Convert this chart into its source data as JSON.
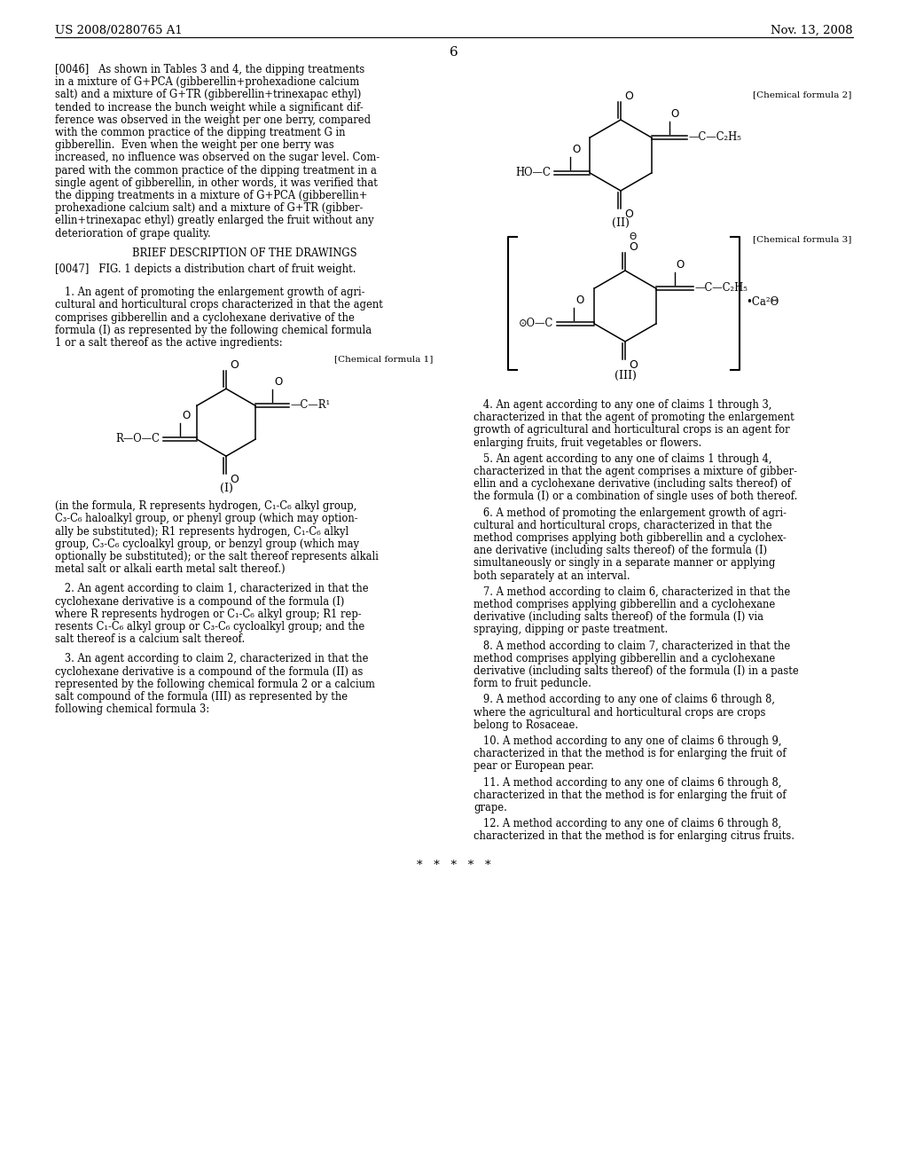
{
  "bg_color": "#ffffff",
  "header_left": "US 2008/0280765 A1",
  "header_right": "Nov. 13, 2008",
  "page_number": "6"
}
